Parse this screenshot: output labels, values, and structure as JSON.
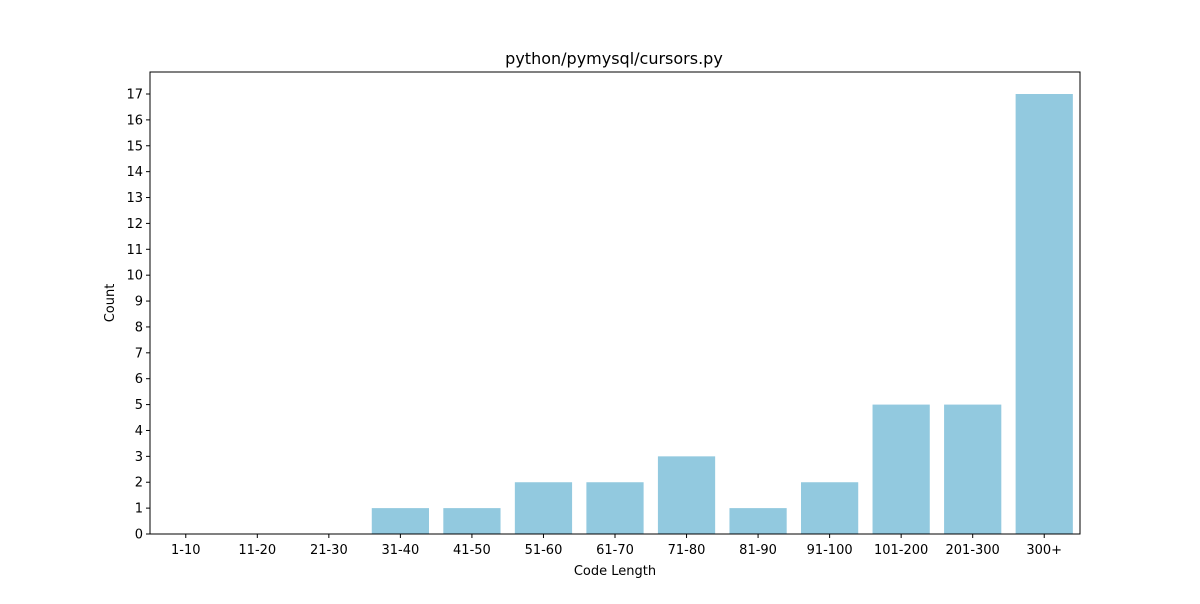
{
  "chart_data": {
    "type": "bar",
    "title": "python/pymysql/cursors.py",
    "xlabel": "Code Length",
    "ylabel": "Count",
    "categories": [
      "1-10",
      "11-20",
      "21-30",
      "31-40",
      "41-50",
      "51-60",
      "61-70",
      "71-80",
      "81-90",
      "91-100",
      "101-200",
      "201-300",
      "300+"
    ],
    "values": [
      0,
      0,
      0,
      1,
      1,
      2,
      2,
      3,
      1,
      2,
      5,
      5,
      17
    ],
    "ylim": [
      0,
      17.85
    ],
    "yticks": [
      "0",
      "1",
      "2",
      "3",
      "4",
      "5",
      "6",
      "7",
      "8",
      "9",
      "10",
      "11",
      "12",
      "13",
      "14",
      "15",
      "16",
      "17"
    ],
    "bar_color": "#92c9df",
    "grid": false,
    "legend": false
  }
}
